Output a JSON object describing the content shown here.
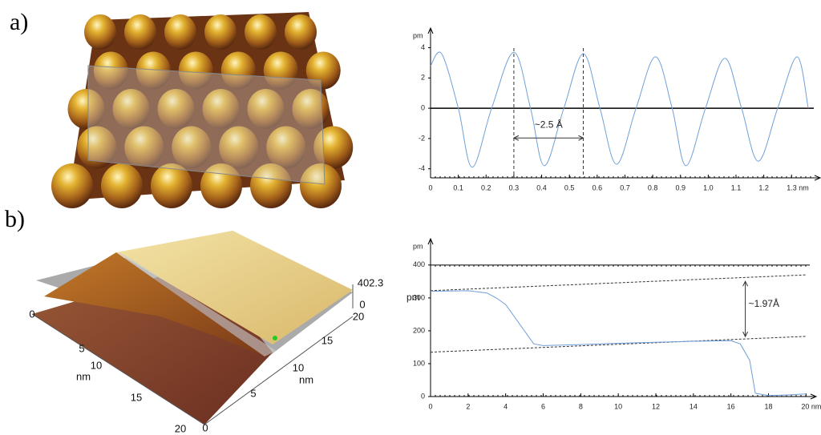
{
  "panels": [
    {
      "label": "a)"
    },
    {
      "label": "b)",
      "surface_labels": [
        "402.3",
        "0",
        "20",
        "15",
        "10",
        "nm",
        "5",
        "0",
        "0",
        "5",
        "10",
        "nm",
        "15",
        "20"
      ]
    }
  ],
  "chart_data": [
    {
      "type": "line",
      "ylabel": "pm",
      "annotation": "~2.5 Å",
      "markers": [
        0.3,
        0.55
      ],
      "zero_line": true,
      "x": [
        0,
        0.04,
        0.1,
        0.15,
        0.22,
        0.3,
        0.36,
        0.41,
        0.48,
        0.55,
        0.61,
        0.67,
        0.74,
        0.81,
        0.87,
        0.92,
        0.99,
        1.06,
        1.12,
        1.18,
        1.25,
        1.32,
        1.36
      ],
      "series": [
        {
          "color": "#6f9fd8",
          "values": [
            2.8,
            3.6,
            0,
            -3.9,
            0,
            3.7,
            0,
            -3.8,
            0,
            3.6,
            0,
            -3.7,
            0,
            3.4,
            0,
            -3.8,
            0,
            3.3,
            0,
            -3.5,
            0,
            3.4,
            0
          ]
        }
      ],
      "xlim": [
        0,
        1.38
      ],
      "ylim": [
        -4.6,
        5.3
      ],
      "xticks": [
        0,
        {
          "value": 0.1,
          "label": "0.1"
        },
        {
          "value": 0.2,
          "label": "0.2"
        },
        {
          "value": 0.3,
          "label": "0.3"
        },
        {
          "value": 0.4,
          "label": "0.4"
        },
        {
          "value": 0.5,
          "label": "0.5"
        },
        {
          "value": 0.6,
          "label": "0.6"
        },
        {
          "value": 0.7,
          "label": "0.7"
        },
        {
          "value": 0.8,
          "label": "0.8"
        },
        {
          "value": 0.9,
          "label": "0.9"
        },
        {
          "value": 1,
          "label": "1.0"
        },
        {
          "value": 1.1,
          "label": "1.1"
        },
        {
          "value": 1.2,
          "label": "1.2"
        },
        {
          "value": 1.3,
          "label": "1.3 nm"
        }
      ],
      "yticks": [
        -4,
        -2,
        0,
        2,
        4
      ]
    },
    {
      "type": "line",
      "ylabel": "pm",
      "y_unit": "pm",
      "annotation": "~1.97Å",
      "x": [
        0,
        1,
        2,
        3,
        3.5,
        4,
        4.5,
        5,
        5.5,
        6,
        8,
        10,
        12,
        14,
        16,
        16.5,
        17,
        17.3,
        18,
        19,
        20
      ],
      "series": [
        {
          "color": "#6f9fd8",
          "values": [
            320,
            321,
            322,
            315,
            300,
            280,
            240,
            200,
            160,
            155,
            158,
            162,
            165,
            168,
            170,
            160,
            110,
            10,
            3,
            5,
            8
          ]
        }
      ],
      "reference_lines": [
        {
          "x": [
            0,
            20
          ],
          "y": [
            322,
            370
          ]
        },
        {
          "x": [
            0,
            20
          ],
          "y": [
            135,
            183
          ]
        }
      ],
      "xlim": [
        0,
        20.2
      ],
      "ylim": [
        0,
        480
      ],
      "xticks": [
        0,
        2,
        4,
        6,
        8,
        10,
        12,
        14,
        16,
        18,
        {
          "value": 20,
          "label": "20 nm"
        }
      ],
      "yticks": [
        0,
        100,
        200,
        300,
        400
      ]
    }
  ]
}
